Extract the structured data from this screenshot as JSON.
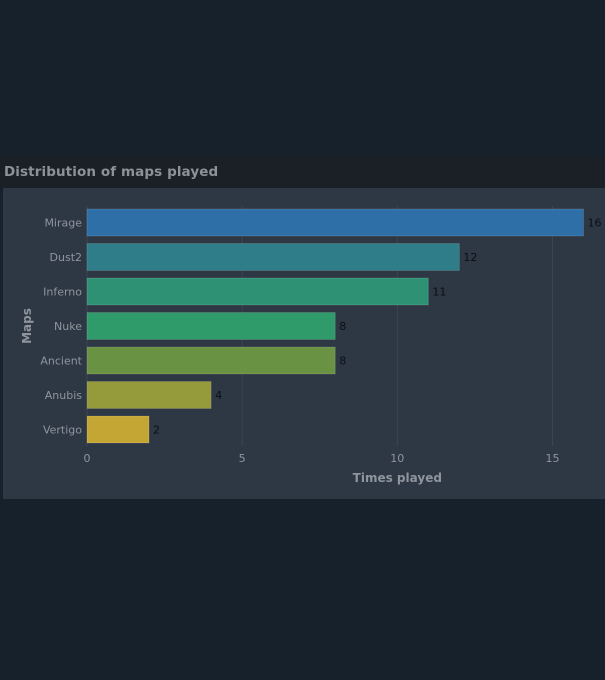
{
  "chart_data": {
    "type": "bar",
    "orientation": "horizontal",
    "title": "Distribution of maps played",
    "xlabel": "Times played",
    "ylabel": "Maps",
    "categories": [
      "Mirage",
      "Dust2",
      "Inferno",
      "Nuke",
      "Ancient",
      "Anubis",
      "Vertigo"
    ],
    "values": [
      16,
      12,
      11,
      8,
      8,
      4,
      2
    ],
    "data_labels": [
      "16",
      "12",
      "11",
      "8",
      "8",
      "4",
      "2"
    ],
    "bar_colors": [
      "#2e6fa7",
      "#2e7d88",
      "#2e9174",
      "#2f9a6a",
      "#6a9243",
      "#959a3a",
      "#c4a635"
    ],
    "xlim": [
      0,
      16.5
    ],
    "xticks": [
      0,
      5,
      10,
      15
    ],
    "xtick_labels": [
      "0",
      "5",
      "10",
      "15"
    ],
    "grid": true,
    "legend": "none"
  }
}
